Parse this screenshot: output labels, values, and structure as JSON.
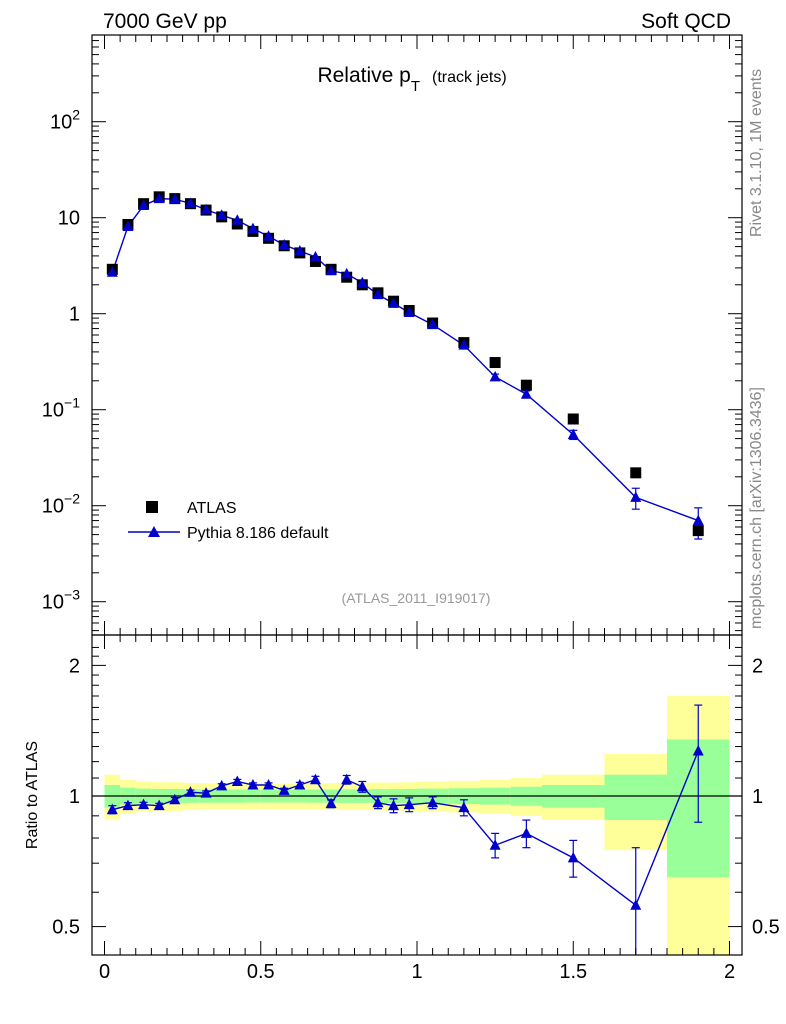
{
  "header": {
    "left": "7000 GeV pp",
    "right": "Soft QCD"
  },
  "side_text": {
    "rivet": "Rivet 3.1.10,  1M events",
    "mcplots": "mcplots.cern.ch [arXiv:1306.3436]"
  },
  "chart_data": [
    {
      "type": "scatter",
      "panel": "main",
      "title_main": "Relative p",
      "title_sub": "T",
      "title_suffix": "(track jets)",
      "analysis_id": "(ATLAS_2011_I919017)",
      "yscale": "log",
      "xlim": [
        -0.04,
        2.04
      ],
      "ylim": [
        0.00045,
        800
      ],
      "y_ticks": [
        {
          "value": 0.001,
          "base": "10",
          "exp": "−3"
        },
        {
          "value": 0.01,
          "base": "10",
          "exp": "−2"
        },
        {
          "value": 0.1,
          "base": "10",
          "exp": "−1"
        },
        {
          "value": 1,
          "base": "1",
          "exp": ""
        },
        {
          "value": 10,
          "base": "10",
          "exp": ""
        },
        {
          "value": 100,
          "base": "10",
          "exp": "2"
        }
      ],
      "legend": {
        "position": "bottom-left",
        "entries": [
          "ATLAS",
          "Pythia 8.186 default"
        ]
      },
      "series": [
        {
          "name": "ATLAS",
          "marker": "square",
          "color": "#000000",
          "x": [
            0.025,
            0.075,
            0.125,
            0.175,
            0.225,
            0.275,
            0.325,
            0.375,
            0.425,
            0.475,
            0.525,
            0.575,
            0.625,
            0.675,
            0.725,
            0.775,
            0.825,
            0.875,
            0.925,
            0.975,
            1.05,
            1.15,
            1.25,
            1.35,
            1.5,
            1.7,
            1.9
          ],
          "y": [
            2.9,
            8.5,
            14.0,
            16.5,
            15.8,
            14.0,
            12.0,
            10.2,
            8.6,
            7.2,
            6.1,
            5.1,
            4.3,
            3.5,
            2.9,
            2.4,
            2.0,
            1.65,
            1.35,
            1.08,
            0.8,
            0.5,
            0.31,
            0.18,
            0.08,
            0.022,
            0.0055
          ]
        },
        {
          "name": "Pythia 8.186 default",
          "marker": "triangle",
          "color": "#0000cc",
          "x": [
            0.025,
            0.075,
            0.125,
            0.175,
            0.225,
            0.275,
            0.325,
            0.375,
            0.425,
            0.475,
            0.525,
            0.575,
            0.625,
            0.675,
            0.725,
            0.775,
            0.825,
            0.875,
            0.925,
            0.975,
            1.05,
            1.15,
            1.25,
            1.35,
            1.5,
            1.7,
            1.9
          ],
          "y": [
            2.7,
            8.1,
            13.4,
            15.8,
            15.6,
            14.1,
            12.1,
            10.6,
            9.4,
            7.7,
            6.4,
            5.2,
            4.5,
            3.9,
            2.8,
            2.6,
            2.1,
            1.58,
            1.28,
            1.03,
            0.77,
            0.47,
            0.22,
            0.145,
            0.055,
            0.0122,
            0.007
          ],
          "err_low": [
            0.1,
            0.2,
            0.3,
            0.3,
            0.3,
            0.3,
            0.2,
            0.2,
            0.2,
            0.2,
            0.15,
            0.12,
            0.1,
            0.1,
            0.08,
            0.08,
            0.06,
            0.05,
            0.05,
            0.04,
            0.03,
            0.03,
            0.015,
            0.012,
            0.006,
            0.003,
            0.0025
          ],
          "err_high": [
            0.1,
            0.2,
            0.3,
            0.3,
            0.3,
            0.3,
            0.2,
            0.2,
            0.2,
            0.2,
            0.15,
            0.12,
            0.1,
            0.1,
            0.08,
            0.08,
            0.06,
            0.05,
            0.05,
            0.04,
            0.03,
            0.03,
            0.015,
            0.012,
            0.006,
            0.003,
            0.0025
          ]
        }
      ]
    },
    {
      "type": "scatter",
      "panel": "ratio",
      "ylabel": "Ratio to ATLAS",
      "yscale": "log",
      "xlim": [
        -0.04,
        2.04
      ],
      "ylim": [
        0.43,
        2.35
      ],
      "y_ticks": [
        0.5,
        1,
        2
      ],
      "x_ticks": [
        0,
        0.5,
        1,
        1.5,
        2
      ],
      "x_tick_labels": [
        "0",
        "0.5",
        "1",
        "1.5",
        "2"
      ],
      "bands": {
        "bins": [
          [
            0.0,
            0.05
          ],
          [
            0.05,
            0.1
          ],
          [
            0.1,
            0.15
          ],
          [
            0.15,
            0.2
          ],
          [
            0.2,
            0.25
          ],
          [
            0.25,
            0.3
          ],
          [
            0.3,
            0.35
          ],
          [
            0.35,
            0.4
          ],
          [
            0.4,
            0.45
          ],
          [
            0.45,
            0.5
          ],
          [
            0.5,
            0.55
          ],
          [
            0.55,
            0.6
          ],
          [
            0.6,
            0.65
          ],
          [
            0.65,
            0.7
          ],
          [
            0.7,
            0.75
          ],
          [
            0.75,
            0.8
          ],
          [
            0.8,
            0.85
          ],
          [
            0.85,
            0.9
          ],
          [
            0.9,
            0.95
          ],
          [
            0.95,
            1.0
          ],
          [
            1.0,
            1.1
          ],
          [
            1.1,
            1.2
          ],
          [
            1.2,
            1.3
          ],
          [
            1.3,
            1.4
          ],
          [
            1.4,
            1.6
          ],
          [
            1.6,
            1.8
          ],
          [
            1.8,
            2.0
          ]
        ],
        "green_half": [
          0.06,
          0.045,
          0.04,
          0.038,
          0.038,
          0.036,
          0.035,
          0.035,
          0.035,
          0.034,
          0.034,
          0.034,
          0.034,
          0.035,
          0.035,
          0.036,
          0.036,
          0.037,
          0.037,
          0.038,
          0.04,
          0.042,
          0.045,
          0.05,
          0.06,
          0.12,
          0.35
        ],
        "yellow_half": [
          0.12,
          0.09,
          0.08,
          0.076,
          0.076,
          0.072,
          0.07,
          0.07,
          0.07,
          0.068,
          0.068,
          0.068,
          0.068,
          0.07,
          0.07,
          0.072,
          0.072,
          0.074,
          0.074,
          0.076,
          0.08,
          0.084,
          0.09,
          0.1,
          0.12,
          0.25,
          0.7
        ],
        "green_color": "#99ff99",
        "yellow_color": "#ffff99"
      },
      "reference_line": 1,
      "series": [
        {
          "name": "Pythia 8.186 default / ATLAS",
          "color": "#0000cc",
          "x": [
            0.025,
            0.075,
            0.125,
            0.175,
            0.225,
            0.275,
            0.325,
            0.375,
            0.425,
            0.475,
            0.525,
            0.575,
            0.625,
            0.675,
            0.725,
            0.775,
            0.825,
            0.875,
            0.925,
            0.975,
            1.05,
            1.15,
            1.25,
            1.35,
            1.5,
            1.7,
            1.9
          ],
          "y": [
            0.93,
            0.95,
            0.955,
            0.95,
            0.98,
            1.02,
            1.015,
            1.055,
            1.08,
            1.06,
            1.06,
            1.03,
            1.06,
            1.09,
            0.96,
            1.09,
            1.05,
            0.965,
            0.95,
            0.955,
            0.965,
            0.94,
            0.77,
            0.82,
            0.72,
            0.56,
            1.27
          ],
          "err_low": [
            0.02,
            0.015,
            0.012,
            0.012,
            0.012,
            0.012,
            0.012,
            0.012,
            0.012,
            0.012,
            0.012,
            0.012,
            0.015,
            0.02,
            0.02,
            0.025,
            0.03,
            0.03,
            0.035,
            0.035,
            0.03,
            0.04,
            0.05,
            0.06,
            0.07,
            0.22,
            0.4
          ],
          "err_high": [
            0.02,
            0.015,
            0.012,
            0.012,
            0.012,
            0.012,
            0.012,
            0.012,
            0.012,
            0.012,
            0.012,
            0.012,
            0.015,
            0.02,
            0.02,
            0.025,
            0.03,
            0.03,
            0.035,
            0.035,
            0.03,
            0.04,
            0.05,
            0.06,
            0.07,
            0.2,
            0.35
          ]
        }
      ]
    }
  ]
}
